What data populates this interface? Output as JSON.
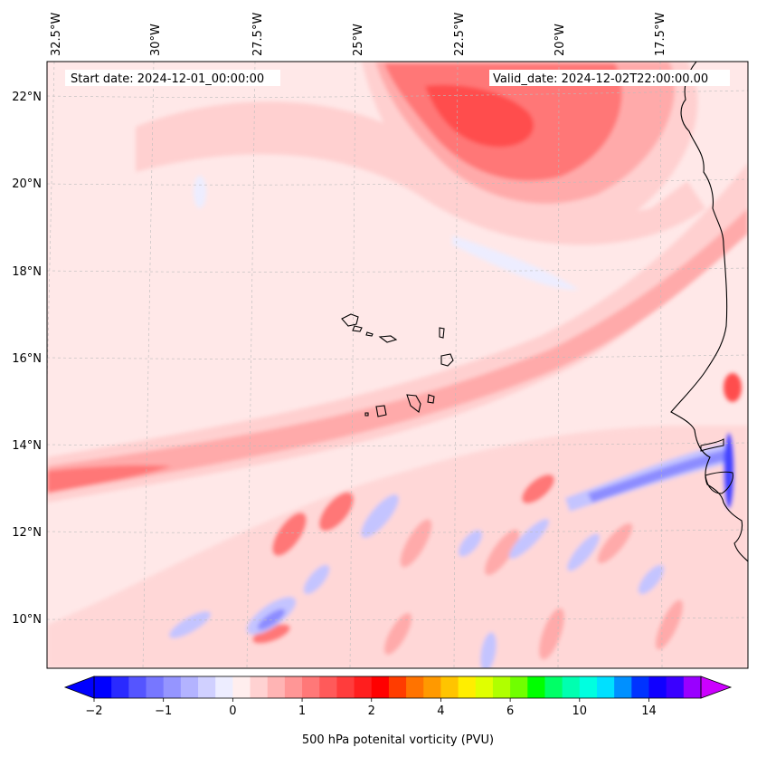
{
  "info": {
    "start_date": "Start date: 2024-12-01_00:00:00",
    "valid_date": "Valid_date: 2024-12-02T22:00:00.00"
  },
  "axes": {
    "lon_labels": [
      "32.5°W",
      "30°W",
      "27.5°W",
      "25°W",
      "22.5°W",
      "20°W",
      "17.5°W"
    ],
    "lat_labels": [
      "22°N",
      "20°N",
      "18°N",
      "16°N",
      "14°N",
      "12°N",
      "10°N"
    ]
  },
  "colorbar": {
    "title": "500 hPa potenital vorticity (PVU)",
    "tick_labels": [
      "−2",
      "−1",
      "0",
      "1",
      "2",
      "4",
      "6",
      "10",
      "14"
    ],
    "colors": [
      "#0000ff",
      "#2a2aff",
      "#5555ff",
      "#7777ff",
      "#9595ff",
      "#b3b3ff",
      "#d0d0ff",
      "#ededff",
      "#ffeeee",
      "#ffd2d2",
      "#ffb4b4",
      "#ff9696",
      "#ff7878",
      "#ff5a5a",
      "#ff3c3c",
      "#ff1e1e",
      "#ff0000",
      "#ff3c00",
      "#ff7300",
      "#ff9900",
      "#ffc400",
      "#ffee00",
      "#e0ff00",
      "#b0ff00",
      "#70ff00",
      "#00ff00",
      "#00ff66",
      "#00ffb0",
      "#00ffe0",
      "#00e0ff",
      "#0090ff",
      "#0033ff",
      "#1000ff",
      "#3a00ff",
      "#9900ff"
    ],
    "extend_min_color": "#0000ff",
    "extend_max_color": "#cc00ff"
  },
  "field_colors": {
    "background": "#ffe8e8",
    "pv_low": "#ffd0d0",
    "pv_mid": "#ffaaaa",
    "pv_high": "#ff7777",
    "pv_peak": "#ff4d4d",
    "neg_light": "#ededff",
    "neg_mid": "#c4c4ff",
    "neg_strong": "#8c8cff",
    "neg_peak": "#4444ff"
  }
}
